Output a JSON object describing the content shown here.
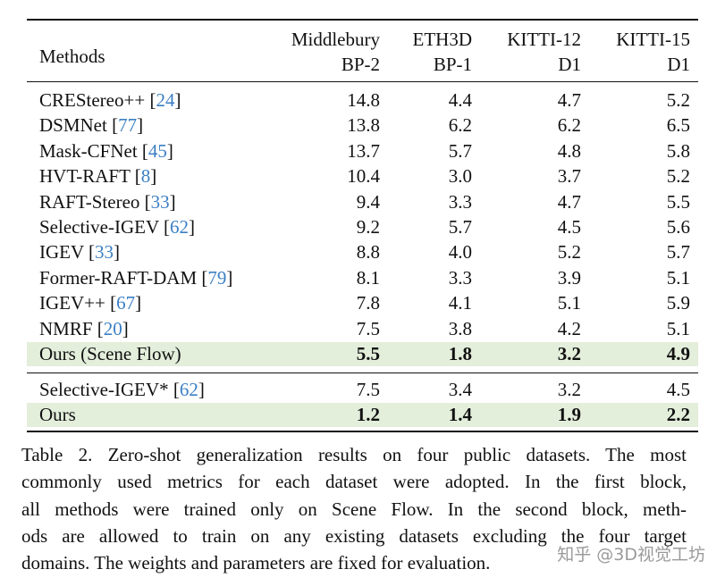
{
  "table": {
    "columns": [
      {
        "lines": [
          "Methods"
        ]
      },
      {
        "lines": [
          "Middlebury",
          "BP-2"
        ]
      },
      {
        "lines": [
          "ETH3D",
          "BP-1"
        ]
      },
      {
        "lines": [
          "KITTI-12",
          "D1"
        ]
      },
      {
        "lines": [
          "KITTI-15",
          "D1"
        ]
      }
    ],
    "blocks": [
      [
        {
          "method": "CREStereo++",
          "cite": [
            "[",
            "24",
            "]"
          ],
          "values": [
            "14.8",
            "4.4",
            "4.7",
            "5.2"
          ]
        },
        {
          "method": "DSMNet",
          "cite": [
            "[",
            "77",
            "]"
          ],
          "values": [
            "13.8",
            "6.2",
            "6.2",
            "6.5"
          ]
        },
        {
          "method": "Mask-CFNet",
          "cite": [
            "[",
            "45",
            "]"
          ],
          "values": [
            "13.7",
            "5.7",
            "4.8",
            "5.8"
          ]
        },
        {
          "method": "HVT-RAFT",
          "cite": [
            "[",
            "8",
            "]"
          ],
          "values": [
            "10.4",
            "3.0",
            "3.7",
            "5.2"
          ]
        },
        {
          "method": "RAFT-Stereo",
          "cite": [
            "[",
            "33",
            "]"
          ],
          "values": [
            "9.4",
            "3.3",
            "4.7",
            "5.5"
          ]
        },
        {
          "method": "Selective-IGEV",
          "cite": [
            "[",
            "62",
            "]"
          ],
          "values": [
            "9.2",
            "5.7",
            "4.5",
            "5.6"
          ]
        },
        {
          "method": "IGEV",
          "cite": [
            "[",
            "33",
            "]"
          ],
          "values": [
            "8.8",
            "4.0",
            "5.2",
            "5.7"
          ]
        },
        {
          "method": "Former-RAFT-DAM",
          "cite": [
            "[",
            "79",
            "]"
          ],
          "values": [
            "8.1",
            "3.3",
            "3.9",
            "5.1"
          ]
        },
        {
          "method": "IGEV++",
          "cite": [
            "[",
            "67",
            "]"
          ],
          "values": [
            "7.8",
            "4.1",
            "5.1",
            "5.9"
          ]
        },
        {
          "method": "NMRF",
          "cite": [
            "[",
            "20",
            "]"
          ],
          "values": [
            "7.5",
            "3.8",
            "4.2",
            "5.1"
          ]
        },
        {
          "method": "Ours (Scene Flow)",
          "highlight": true,
          "values": [
            "5.5",
            "1.8",
            "3.2",
            "4.9"
          ]
        }
      ],
      [
        {
          "method": "Selective-IGEV*",
          "cite": [
            "[",
            "62",
            "]"
          ],
          "values": [
            "7.5",
            "3.4",
            "3.2",
            "4.5"
          ]
        },
        {
          "method": "Ours",
          "highlight": true,
          "values": [
            "1.2",
            "1.4",
            "1.9",
            "2.2"
          ]
        }
      ]
    ]
  },
  "caption": [
    "Table 2. Zero-shot generalization results on four public datasets. The most",
    "commonly used metrics for each dataset were adopted. In the first block,",
    "all methods were trained only on Scene Flow. In the second block, meth-",
    "ods are allowed to train on any existing datasets excluding the four target",
    "domains. The weights and parameters are fixed for evaluation."
  ],
  "watermark": "知乎 @3D视觉工坊"
}
